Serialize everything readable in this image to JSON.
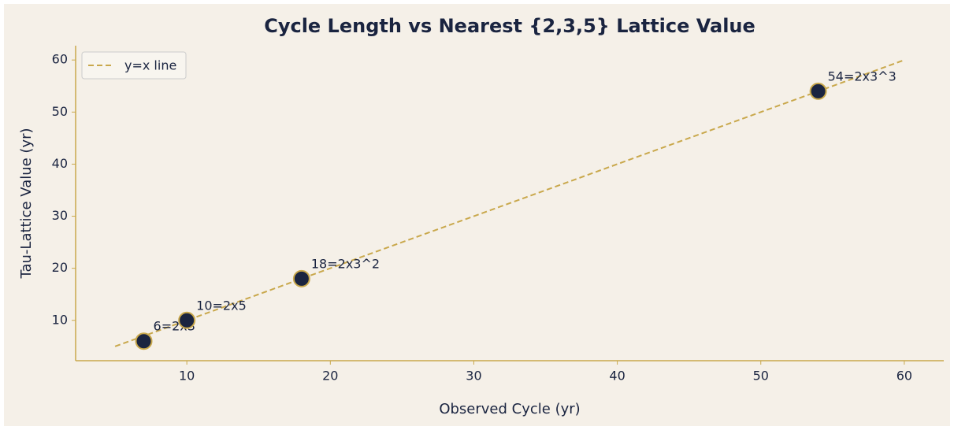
{
  "chart_data": {
    "type": "scatter",
    "title": "Cycle Length vs Nearest {2,3,5} Lattice Value",
    "xlabel": "Observed Cycle (yr)",
    "ylabel": "Tau-Lattice Value (yr)",
    "points": {
      "x": [
        7,
        10,
        18,
        54
      ],
      "values": [
        6,
        10,
        18,
        54
      ],
      "labels": [
        "6=2x3",
        "10=2x5",
        "18=2x3^2",
        "54=2x3^3"
      ],
      "color": "#1a2440",
      "edge_color": "#c9a84c"
    },
    "reference_line": {
      "name": "y=x line",
      "color": "#c9a84c",
      "style": "dashed",
      "x": [
        5,
        60
      ],
      "values": [
        5,
        60
      ]
    },
    "xlim": [
      2.25,
      62.75
    ],
    "ylim": [
      2.25,
      62.75
    ],
    "xticks": [
      10,
      20,
      30,
      40,
      50,
      60
    ],
    "yticks": [
      10,
      20,
      30,
      40,
      50,
      60
    ],
    "grid": false,
    "legend": "upper left"
  }
}
